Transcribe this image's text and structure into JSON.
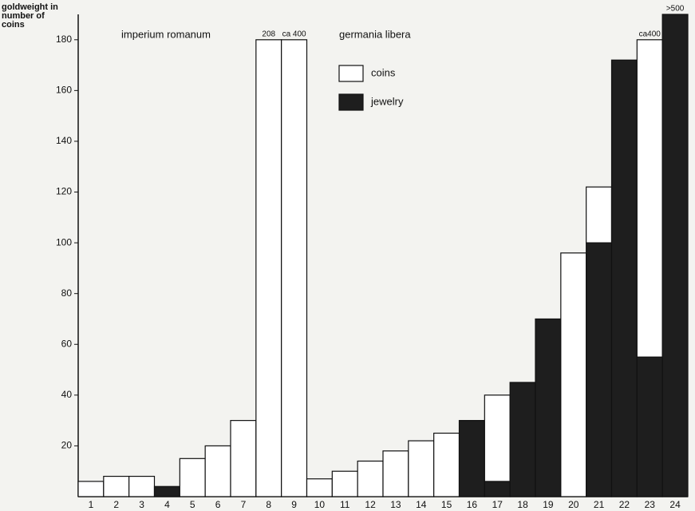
{
  "chart_data": {
    "type": "stacked_bar",
    "y_label": [
      "goldweight in",
      "number of",
      "coins"
    ],
    "labels": [
      "imperium romanum",
      "germania libera"
    ],
    "categories": [
      "1",
      "2",
      "3",
      "4",
      "5",
      "6",
      "7",
      "8",
      "9",
      "10",
      "11",
      "12",
      "13",
      "14",
      "15",
      "16",
      "17",
      "18",
      "19",
      "20",
      "21",
      "22",
      "23",
      "24"
    ],
    "series": [
      {
        "name": "coins",
        "color": "#ffffff",
        "values": [
          6,
          8,
          8,
          0,
          15,
          20,
          30,
          180,
          180,
          7,
          10,
          14,
          18,
          22,
          25,
          0,
          34,
          0,
          0,
          96,
          22,
          0,
          125,
          0
        ]
      },
      {
        "name": "jewelry",
        "color": "#1e1e1e",
        "values": [
          0,
          0,
          0,
          4,
          0,
          0,
          0,
          0,
          0,
          0,
          0,
          0,
          0,
          0,
          0,
          30,
          6,
          45,
          70,
          0,
          100,
          172,
          55,
          190
        ]
      }
    ],
    "bar_notes": [
      {
        "category": "8",
        "text": "208"
      },
      {
        "category": "9",
        "text": "ca 400"
      },
      {
        "category": "23",
        "text": "ca400"
      },
      {
        "category": "24",
        "text": ">500"
      }
    ],
    "ylim": [
      0,
      190
    ],
    "yticks": [
      20,
      40,
      60,
      80,
      100,
      120,
      140,
      160,
      180
    ],
    "grid": false
  }
}
